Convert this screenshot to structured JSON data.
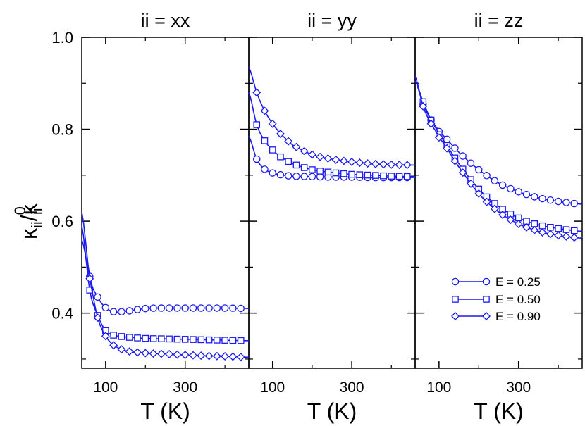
{
  "chart_data": {
    "type": "line",
    "ylabel_main": "κ",
    "ylabel_sub": "ii",
    "ylabel_slash": "/",
    "ylabel_sup": "0",
    "ylim": [
      0.28,
      1.0
    ],
    "xlim": [
      40,
      460
    ],
    "yticks": [
      {
        "value": 0.4,
        "label": "0.4"
      },
      {
        "value": 0.6,
        "label": "0.6"
      },
      {
        "value": 0.8,
        "label": "0.8"
      },
      {
        "value": 1.0,
        "label": "1.0"
      }
    ],
    "xticks": [
      {
        "value": 100,
        "label": "100"
      },
      {
        "value": 300,
        "label": "300"
      }
    ],
    "xlabel": "T (K)",
    "line_color": "#1a1aee",
    "legend": [
      {
        "label": "E =  0.25",
        "marker": "circle"
      },
      {
        "label": "E =  0.50",
        "marker": "square"
      },
      {
        "label": "E =  0.90",
        "marker": "diamond"
      }
    ],
    "panels": [
      {
        "title": "ii = xx",
        "series": [
          {
            "name": "E = 0.25",
            "marker": "circle",
            "x": [
              40,
              60,
              80,
              100,
              120,
              150,
              200,
              250,
              300,
              350,
              400,
              460
            ],
            "y": [
              0.62,
              0.48,
              0.435,
              0.412,
              0.403,
              0.404,
              0.41,
              0.411,
              0.411,
              0.411,
              0.411,
              0.41
            ]
          },
          {
            "name": "E = 0.50",
            "marker": "square",
            "x": [
              40,
              60,
              80,
              100,
              120,
              150,
              200,
              250,
              300,
              350,
              400,
              460
            ],
            "y": [
              0.59,
              0.45,
              0.395,
              0.362,
              0.352,
              0.348,
              0.345,
              0.344,
              0.343,
              0.342,
              0.341,
              0.34
            ]
          },
          {
            "name": "E = 0.90",
            "marker": "diamond",
            "x": [
              40,
              60,
              80,
              100,
              120,
              150,
              200,
              250,
              300,
              350,
              400,
              460
            ],
            "y": [
              0.56,
              0.475,
              0.39,
              0.35,
              0.33,
              0.318,
              0.313,
              0.311,
              0.309,
              0.307,
              0.306,
              0.304
            ]
          }
        ]
      },
      {
        "title": "ii = yy",
        "series": [
          {
            "name": "E = 0.25",
            "marker": "circle",
            "x": [
              40,
              60,
              80,
              100,
              120,
              150,
              200,
              250,
              300,
              350,
              400,
              460
            ],
            "y": [
              0.785,
              0.735,
              0.713,
              0.705,
              0.701,
              0.698,
              0.697,
              0.696,
              0.696,
              0.695,
              0.695,
              0.695
            ]
          },
          {
            "name": "E = 0.50",
            "marker": "square",
            "x": [
              40,
              60,
              80,
              100,
              120,
              150,
              200,
              250,
              300,
              350,
              400,
              460
            ],
            "y": [
              0.88,
              0.81,
              0.775,
              0.755,
              0.74,
              0.725,
              0.712,
              0.706,
              0.702,
              0.7,
              0.698,
              0.697
            ]
          },
          {
            "name": "E = 0.90",
            "marker": "diamond",
            "x": [
              40,
              60,
              80,
              100,
              120,
              150,
              200,
              250,
              300,
              350,
              400,
              460
            ],
            "y": [
              0.935,
              0.88,
              0.84,
              0.812,
              0.79,
              0.766,
              0.745,
              0.735,
              0.729,
              0.725,
              0.723,
              0.722
            ]
          }
        ]
      },
      {
        "title": "ii = zz",
        "series": [
          {
            "name": "E = 0.25",
            "marker": "circle",
            "x": [
              40,
              60,
              80,
              100,
              150,
              200,
              250,
              300,
              350,
              400,
              460
            ],
            "y": [
              0.905,
              0.855,
              0.82,
              0.795,
              0.75,
              0.712,
              0.683,
              0.664,
              0.651,
              0.643,
              0.637
            ]
          },
          {
            "name": "E = 0.50",
            "marker": "square",
            "x": [
              40,
              60,
              80,
              100,
              150,
              200,
              250,
              300,
              350,
              400,
              460
            ],
            "y": [
              0.905,
              0.86,
              0.82,
              0.788,
              0.725,
              0.67,
              0.632,
              0.607,
              0.592,
              0.584,
              0.578
            ]
          },
          {
            "name": "E = 0.90",
            "marker": "diamond",
            "x": [
              40,
              60,
              80,
              100,
              150,
              200,
              250,
              300,
              350,
              400,
              460
            ],
            "y": [
              0.915,
              0.85,
              0.812,
              0.782,
              0.718,
              0.66,
              0.62,
              0.594,
              0.578,
              0.569,
              0.563
            ]
          }
        ]
      }
    ]
  }
}
